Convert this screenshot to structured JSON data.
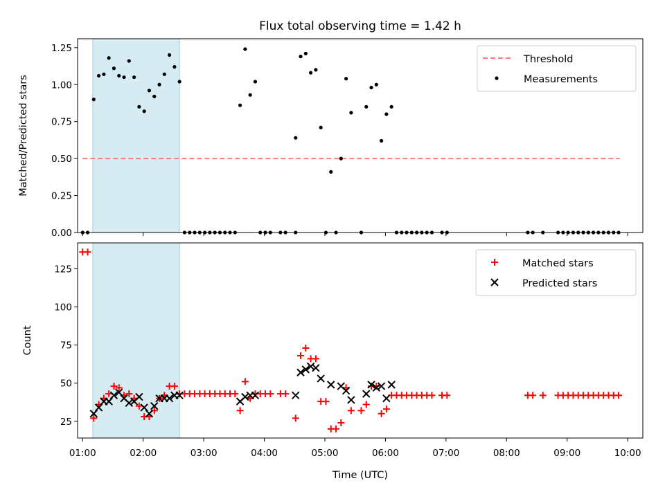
{
  "chart_data": [
    {
      "type": "scatter",
      "title": "Flux total observing time = 1.42 h",
      "xlabel": "",
      "ylabel": "Matched/Predicted stars",
      "xlim": [
        "00:55",
        "10:15"
      ],
      "ylim": [
        0,
        1.31
      ],
      "xticks": [
        "01:00",
        "02:00",
        "03:00",
        "04:00",
        "05:00",
        "06:00",
        "07:00",
        "08:00",
        "09:00",
        "10:00"
      ],
      "yticks": [
        "0.00",
        "0.25",
        "0.50",
        "0.75",
        "1.00",
        "1.25"
      ],
      "shaded_span": [
        "01:10",
        "02:36"
      ],
      "shade_color": "#add8e6",
      "threshold": {
        "name": "Threshold",
        "value": 0.5,
        "x_range": [
          "01:00",
          "09:52"
        ],
        "color": "#ff7a7a"
      },
      "legend_position": "top-right",
      "series": [
        {
          "name": "Measurements",
          "color": "#000000",
          "points": [
            [
              "01:00",
              0.0
            ],
            [
              "01:05",
              0.0
            ],
            [
              "01:11",
              0.9
            ],
            [
              "01:16",
              1.06
            ],
            [
              "01:21",
              1.07
            ],
            [
              "01:26",
              1.18
            ],
            [
              "01:31",
              1.11
            ],
            [
              "01:36",
              1.06
            ],
            [
              "01:41",
              1.05
            ],
            [
              "01:46",
              1.16
            ],
            [
              "01:51",
              1.05
            ],
            [
              "01:56",
              0.85
            ],
            [
              "02:01",
              0.82
            ],
            [
              "02:06",
              0.96
            ],
            [
              "02:11",
              0.92
            ],
            [
              "02:16",
              1.0
            ],
            [
              "02:21",
              1.07
            ],
            [
              "02:26",
              1.2
            ],
            [
              "02:31",
              1.12
            ],
            [
              "02:36",
              1.02
            ],
            [
              "02:41",
              0.0
            ],
            [
              "02:46",
              0.0
            ],
            [
              "02:51",
              0.0
            ],
            [
              "02:56",
              0.0
            ],
            [
              "03:01",
              0.0
            ],
            [
              "03:06",
              0.0
            ],
            [
              "03:11",
              0.0
            ],
            [
              "03:16",
              0.0
            ],
            [
              "03:21",
              0.0
            ],
            [
              "03:26",
              0.0
            ],
            [
              "03:31",
              0.0
            ],
            [
              "03:36",
              0.86
            ],
            [
              "03:41",
              1.24
            ],
            [
              "03:46",
              0.93
            ],
            [
              "03:51",
              1.02
            ],
            [
              "03:56",
              0.0
            ],
            [
              "04:01",
              0.0
            ],
            [
              "04:06",
              0.0
            ],
            [
              "04:16",
              0.0
            ],
            [
              "04:21",
              0.0
            ],
            [
              "04:31",
              0.0
            ],
            [
              "04:36",
              1.19
            ],
            [
              "04:41",
              1.21
            ],
            [
              "04:46",
              1.08
            ],
            [
              "04:51",
              1.1
            ],
            [
              "04:56",
              0.71
            ],
            [
              "05:01",
              0.0
            ],
            [
              "05:06",
              0.41
            ],
            [
              "05:11",
              0.0
            ],
            [
              "05:16",
              0.5
            ],
            [
              "05:21",
              1.04
            ],
            [
              "05:26",
              0.81
            ],
            [
              "05:36",
              0.0
            ],
            [
              "05:41",
              0.85
            ],
            [
              "05:46",
              0.98
            ],
            [
              "05:51",
              1.0
            ],
            [
              "05:56",
              0.62
            ],
            [
              "06:01",
              0.8
            ],
            [
              "06:06",
              0.85
            ],
            [
              "06:11",
              0.0
            ],
            [
              "06:16",
              0.0
            ],
            [
              "06:21",
              0.0
            ],
            [
              "06:26",
              0.0
            ],
            [
              "06:31",
              0.0
            ],
            [
              "06:36",
              0.0
            ],
            [
              "06:41",
              0.0
            ],
            [
              "06:46",
              0.0
            ],
            [
              "06:56",
              0.0
            ],
            [
              "07:01",
              0.0
            ],
            [
              "08:21",
              0.0
            ],
            [
              "08:26",
              0.0
            ],
            [
              "08:36",
              0.0
            ],
            [
              "08:51",
              0.0
            ],
            [
              "08:56",
              0.0
            ],
            [
              "09:01",
              0.0
            ],
            [
              "09:06",
              0.0
            ],
            [
              "09:11",
              0.0
            ],
            [
              "09:16",
              0.0
            ],
            [
              "09:21",
              0.0
            ],
            [
              "09:26",
              0.0
            ],
            [
              "09:31",
              0.0
            ],
            [
              "09:36",
              0.0
            ],
            [
              "09:41",
              0.0
            ],
            [
              "09:46",
              0.0
            ],
            [
              "09:51",
              0.0
            ],
            [
              "04:31",
              0.64
            ]
          ]
        }
      ]
    },
    {
      "type": "scatter",
      "title": "",
      "xlabel": "Time (UTC)",
      "ylabel": "Count",
      "xlim": [
        "00:55",
        "10:15"
      ],
      "ylim": [
        14,
        142
      ],
      "xticks": [
        "01:00",
        "02:00",
        "03:00",
        "04:00",
        "05:00",
        "06:00",
        "07:00",
        "08:00",
        "09:00",
        "10:00"
      ],
      "yticks": [
        "25",
        "50",
        "75",
        "100",
        "125"
      ],
      "shaded_span": [
        "01:10",
        "02:36"
      ],
      "shade_color": "#add8e6",
      "legend_position": "top-right",
      "series": [
        {
          "name": "Matched stars",
          "marker": "plus",
          "color": "#ff0000",
          "points": [
            [
              "01:00",
              136
            ],
            [
              "01:05",
              136
            ],
            [
              "01:11",
              27
            ],
            [
              "01:16",
              36
            ],
            [
              "01:21",
              40
            ],
            [
              "01:26",
              43
            ],
            [
              "01:31",
              48
            ],
            [
              "01:36",
              47
            ],
            [
              "01:41",
              42
            ],
            [
              "01:46",
              43
            ],
            [
              "01:51",
              40
            ],
            [
              "01:56",
              35
            ],
            [
              "02:01",
              28
            ],
            [
              "02:06",
              28
            ],
            [
              "02:11",
              32
            ],
            [
              "02:16",
              40
            ],
            [
              "02:21",
              42
            ],
            [
              "02:26",
              48
            ],
            [
              "02:31",
              48
            ],
            [
              "02:36",
              43
            ],
            [
              "02:41",
              43
            ],
            [
              "02:46",
              43
            ],
            [
              "02:51",
              43
            ],
            [
              "02:56",
              43
            ],
            [
              "03:01",
              43
            ],
            [
              "03:06",
              43
            ],
            [
              "03:11",
              43
            ],
            [
              "03:16",
              43
            ],
            [
              "03:21",
              43
            ],
            [
              "03:26",
              43
            ],
            [
              "03:31",
              43
            ],
            [
              "03:36",
              32
            ],
            [
              "03:41",
              51
            ],
            [
              "03:46",
              40
            ],
            [
              "03:51",
              43
            ],
            [
              "03:56",
              43
            ],
            [
              "04:01",
              43
            ],
            [
              "04:06",
              43
            ],
            [
              "04:16",
              43
            ],
            [
              "04:21",
              43
            ],
            [
              "04:31",
              27
            ],
            [
              "04:36",
              68
            ],
            [
              "04:41",
              73
            ],
            [
              "04:46",
              66
            ],
            [
              "04:51",
              66
            ],
            [
              "04:56",
              38
            ],
            [
              "05:01",
              38
            ],
            [
              "05:06",
              20
            ],
            [
              "05:11",
              20
            ],
            [
              "05:16",
              24
            ],
            [
              "05:21",
              47
            ],
            [
              "05:26",
              32
            ],
            [
              "05:36",
              32
            ],
            [
              "05:41",
              36
            ],
            [
              "05:46",
              48
            ],
            [
              "05:51",
              48
            ],
            [
              "05:56",
              30
            ],
            [
              "06:01",
              33
            ],
            [
              "06:06",
              42
            ],
            [
              "06:11",
              42
            ],
            [
              "06:16",
              42
            ],
            [
              "06:21",
              42
            ],
            [
              "06:26",
              42
            ],
            [
              "06:31",
              42
            ],
            [
              "06:36",
              42
            ],
            [
              "06:41",
              42
            ],
            [
              "06:46",
              42
            ],
            [
              "06:56",
              42
            ],
            [
              "07:01",
              42
            ],
            [
              "08:21",
              42
            ],
            [
              "08:26",
              42
            ],
            [
              "08:36",
              42
            ],
            [
              "08:51",
              42
            ],
            [
              "08:56",
              42
            ],
            [
              "09:01",
              42
            ],
            [
              "09:06",
              42
            ],
            [
              "09:11",
              42
            ],
            [
              "09:16",
              42
            ],
            [
              "09:21",
              42
            ],
            [
              "09:26",
              42
            ],
            [
              "09:31",
              42
            ],
            [
              "09:36",
              42
            ],
            [
              "09:41",
              42
            ],
            [
              "09:46",
              42
            ],
            [
              "09:51",
              42
            ]
          ]
        },
        {
          "name": "Predicted stars",
          "marker": "x",
          "color": "#000000",
          "points": [
            [
              "01:11",
              30
            ],
            [
              "01:16",
              34
            ],
            [
              "01:21",
              38
            ],
            [
              "01:26",
              38
            ],
            [
              "01:31",
              42
            ],
            [
              "01:36",
              44
            ],
            [
              "01:41",
              40
            ],
            [
              "01:46",
              37
            ],
            [
              "01:51",
              38
            ],
            [
              "01:56",
              41
            ],
            [
              "02:01",
              34
            ],
            [
              "02:06",
              30
            ],
            [
              "02:11",
              35
            ],
            [
              "02:16",
              40
            ],
            [
              "02:21",
              40
            ],
            [
              "02:26",
              40
            ],
            [
              "02:31",
              42
            ],
            [
              "02:36",
              42
            ],
            [
              "03:36",
              38
            ],
            [
              "03:41",
              41
            ],
            [
              "03:46",
              42
            ],
            [
              "03:51",
              42
            ],
            [
              "04:31",
              42
            ],
            [
              "04:36",
              57
            ],
            [
              "04:41",
              59
            ],
            [
              "04:46",
              61
            ],
            [
              "04:51",
              60
            ],
            [
              "04:56",
              53
            ],
            [
              "05:06",
              49
            ],
            [
              "05:16",
              48
            ],
            [
              "05:21",
              45
            ],
            [
              "05:26",
              39
            ],
            [
              "05:41",
              43
            ],
            [
              "05:46",
              49
            ],
            [
              "05:51",
              47
            ],
            [
              "05:56",
              48
            ],
            [
              "06:01",
              40
            ],
            [
              "06:06",
              49
            ]
          ]
        }
      ]
    }
  ]
}
